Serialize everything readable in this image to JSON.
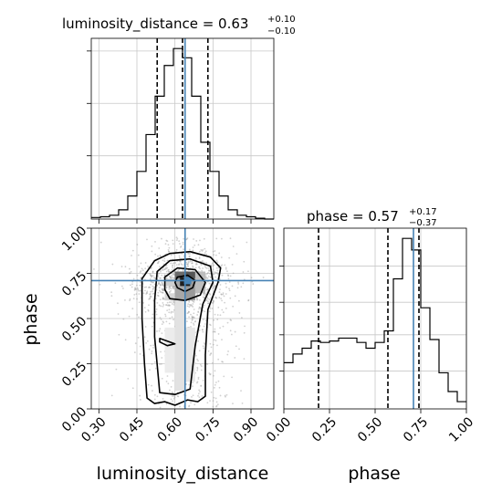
{
  "accent": "#4682b4",
  "chart_data": {
    "type": "corner",
    "params": [
      "luminosity_distance",
      "phase"
    ],
    "truths": {
      "luminosity_distance": 0.64,
      "phase": 0.71
    },
    "panels": {
      "hist_luminosity_distance": {
        "type": "histogram",
        "title_main": "luminosity_distance = 0.63",
        "title_sup": "+0.10",
        "title_sub": "−0.10",
        "xlim": [
          0.27,
          0.99
        ],
        "bin_edges": [
          0.27,
          0.306,
          0.342,
          0.378,
          0.414,
          0.45,
          0.486,
          0.522,
          0.558,
          0.594,
          0.63,
          0.666,
          0.702,
          0.738,
          0.774,
          0.81,
          0.846,
          0.882,
          0.918,
          0.954,
          0.99
        ],
        "counts": [
          2,
          3,
          5,
          12,
          30,
          62,
          110,
          160,
          200,
          222,
          210,
          160,
          100,
          62,
          30,
          12,
          5,
          3,
          1,
          0
        ],
        "quantiles": [
          0.53,
          0.63,
          0.73
        ],
        "truth": 0.64
      },
      "hist_phase": {
        "type": "histogram",
        "title_main": "phase = 0.57",
        "title_sup": "+0.17",
        "title_sub": "−0.37",
        "xlim": [
          0.0,
          1.0
        ],
        "bin_edges": [
          0.0,
          0.05,
          0.1,
          0.15,
          0.2,
          0.25,
          0.3,
          0.35,
          0.4,
          0.45,
          0.5,
          0.55,
          0.6,
          0.65,
          0.7,
          0.75,
          0.8,
          0.85,
          0.9,
          0.95,
          1.0
        ],
        "counts": [
          32,
          38,
          42,
          47,
          46,
          47,
          49,
          49,
          46,
          42,
          46,
          54,
          90,
          118,
          110,
          70,
          48,
          25,
          12,
          5
        ],
        "quantiles": [
          0.19,
          0.57,
          0.74
        ],
        "truth": 0.71
      },
      "scatter": {
        "type": "scatter_density",
        "xlabel": "luminosity_distance",
        "ylabel": "phase",
        "xlim": [
          0.27,
          0.99
        ],
        "ylim": [
          0.0,
          1.0
        ],
        "xticks": [
          "0.30",
          "0.45",
          "0.60",
          "0.75",
          "0.90"
        ],
        "xtick_values": [
          0.3,
          0.45,
          0.6,
          0.75,
          0.9
        ],
        "yticks": [
          "0.00",
          "0.25",
          "0.50",
          "0.75",
          "1.00"
        ],
        "ytick_values": [
          0.0,
          0.25,
          0.5,
          0.75,
          1.0
        ],
        "mode": {
          "x": 0.64,
          "y": 0.69
        },
        "contours": [
          {
            "level": "outer",
            "points": [
              [
                0.49,
                0.06
              ],
              [
                0.52,
                0.03
              ],
              [
                0.56,
                0.04
              ],
              [
                0.6,
                0.02
              ],
              [
                0.65,
                0.05
              ],
              [
                0.69,
                0.04
              ],
              [
                0.72,
                0.07
              ],
              [
                0.72,
                0.3
              ],
              [
                0.73,
                0.55
              ],
              [
                0.77,
                0.7
              ],
              [
                0.78,
                0.78
              ],
              [
                0.74,
                0.84
              ],
              [
                0.66,
                0.87
              ],
              [
                0.58,
                0.86
              ],
              [
                0.52,
                0.82
              ],
              [
                0.47,
                0.72
              ],
              [
                0.47,
                0.5
              ],
              [
                0.48,
                0.25
              ],
              [
                0.49,
                0.06
              ]
            ]
          },
          {
            "level": "middle",
            "points": [
              [
                0.54,
                0.09
              ],
              [
                0.6,
                0.08
              ],
              [
                0.66,
                0.11
              ],
              [
                0.68,
                0.35
              ],
              [
                0.71,
                0.58
              ],
              [
                0.75,
                0.7
              ],
              [
                0.74,
                0.79
              ],
              [
                0.66,
                0.83
              ],
              [
                0.58,
                0.82
              ],
              [
                0.53,
                0.76
              ],
              [
                0.52,
                0.6
              ],
              [
                0.52,
                0.4
              ],
              [
                0.54,
                0.09
              ]
            ]
          },
          {
            "level": "inner",
            "points": [
              [
                0.58,
                0.61
              ],
              [
                0.64,
                0.6
              ],
              [
                0.7,
                0.63
              ],
              [
                0.72,
                0.7
              ],
              [
                0.68,
                0.77
              ],
              [
                0.61,
                0.78
              ],
              [
                0.56,
                0.73
              ],
              [
                0.56,
                0.66
              ],
              [
                0.58,
                0.61
              ]
            ]
          },
          {
            "level": "core",
            "points": [
              [
                0.61,
                0.67
              ],
              [
                0.64,
                0.65
              ],
              [
                0.67,
                0.67
              ],
              [
                0.68,
                0.71
              ],
              [
                0.65,
                0.74
              ],
              [
                0.61,
                0.73
              ],
              [
                0.6,
                0.7
              ],
              [
                0.61,
                0.67
              ]
            ]
          },
          {
            "level": "small",
            "points": [
              [
                0.54,
                0.39
              ],
              [
                0.58,
                0.37
              ],
              [
                0.6,
                0.36
              ],
              [
                0.57,
                0.35
              ],
              [
                0.54,
                0.37
              ],
              [
                0.54,
                0.39
              ]
            ]
          }
        ]
      }
    }
  }
}
